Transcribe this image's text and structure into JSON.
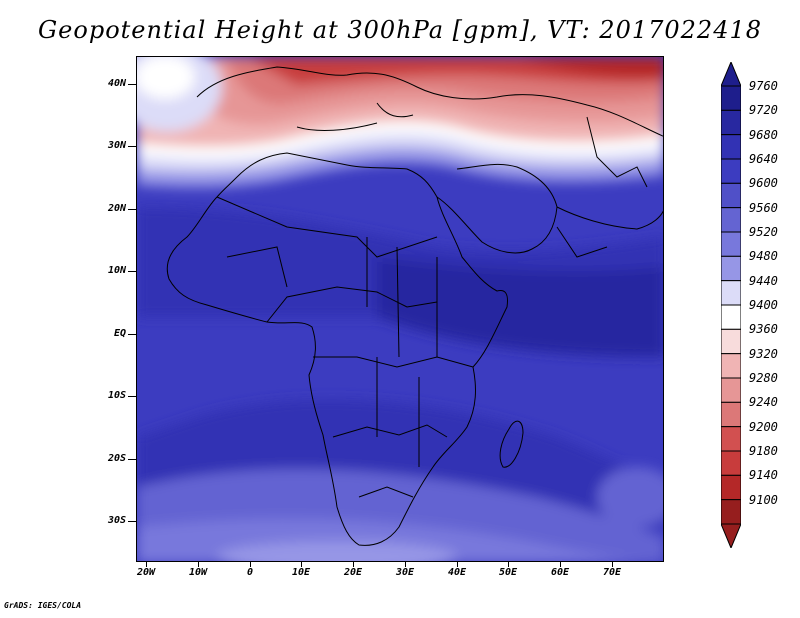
{
  "title": "Geopotential Height at 300hPa [gpm], VT: 2017022418",
  "credit": "GrADS: IGES/COLA",
  "lat_labels": [
    "40N",
    "30N",
    "20N",
    "10N",
    "EQ",
    "10S",
    "20S",
    "30S"
  ],
  "lon_labels": [
    "20W",
    "10W",
    "0",
    "10E",
    "20E",
    "30E",
    "40E",
    "50E",
    "60E",
    "70E"
  ],
  "colorbar": {
    "levels": [
      "9760",
      "9720",
      "9680",
      "9640",
      "9600",
      "9560",
      "9520",
      "9480",
      "9440",
      "9400",
      "9360",
      "9320",
      "9280",
      "9240",
      "9200",
      "9180",
      "9140",
      "9100"
    ],
    "colors": [
      "#1e1e8c",
      "#2828a0",
      "#3232b4",
      "#3c3cc0",
      "#5050c8",
      "#6464d2",
      "#7878dc",
      "#9696e6",
      "#dcdcf8",
      "#ffffff",
      "#f8dcdc",
      "#f0b4b4",
      "#e69696",
      "#dc7878",
      "#d25050",
      "#c83c3c",
      "#b42828",
      "#961e1e"
    ]
  },
  "map": {
    "region": "Africa",
    "extent": {
      "lon": [
        -22,
        80
      ],
      "lat": [
        -37,
        44
      ]
    }
  }
}
